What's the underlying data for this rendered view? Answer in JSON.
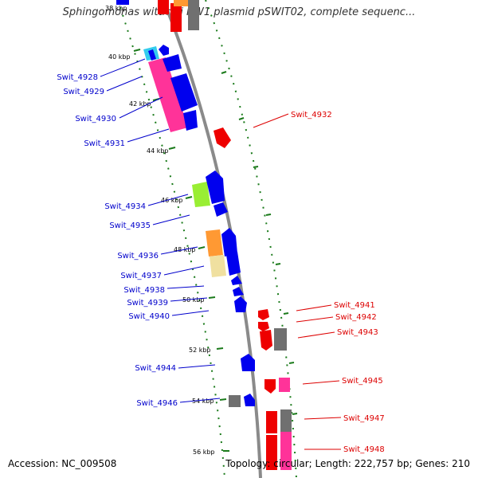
{
  "title": "Sphingomonas wittichii RW1 plasmid pSWIT02, complete sequenc...",
  "footer": {
    "accession": "Accession: NC_009508",
    "topology": "Topology: circular; Length: 222,757 bp; Genes: 210"
  },
  "kbp_labels": [
    "40 kbp",
    "42 kbp",
    "44 kbp",
    "46 kbp",
    "48 kbp",
    "50 kbp",
    "52 kbp",
    "54 kbp",
    "56 kbp"
  ],
  "gene_labels": {
    "left": [
      "Swit_4928",
      "Swit_4929",
      "Swit_4930",
      "Swit_4931",
      "Swit_4934",
      "Swit_4935",
      "Swit_4936",
      "Swit_4937",
      "Swit_4938",
      "Swit_4939",
      "Swit_4940",
      "Swit_4944",
      "Swit_4946"
    ],
    "right": [
      "Swit_4932",
      "Swit_4941",
      "Swit_4942",
      "Swit_4943",
      "Swit_4945",
      "Swit_4947",
      "Swit_4948"
    ]
  },
  "colors": {
    "backbone": "#8a8a8a",
    "forward_label": "#0000cc",
    "reverse_label": "#dd0000",
    "tick": "#1a7a1a",
    "cog_blue": "#0000ee",
    "cog_red": "#ee0000",
    "cog_pink": "#ff3399",
    "cog_green": "#99ee33",
    "cog_orange": "#ff9933",
    "cog_tan": "#f0e0a0",
    "cog_gray": "#707070",
    "cog_cyan": "#33ccee"
  }
}
